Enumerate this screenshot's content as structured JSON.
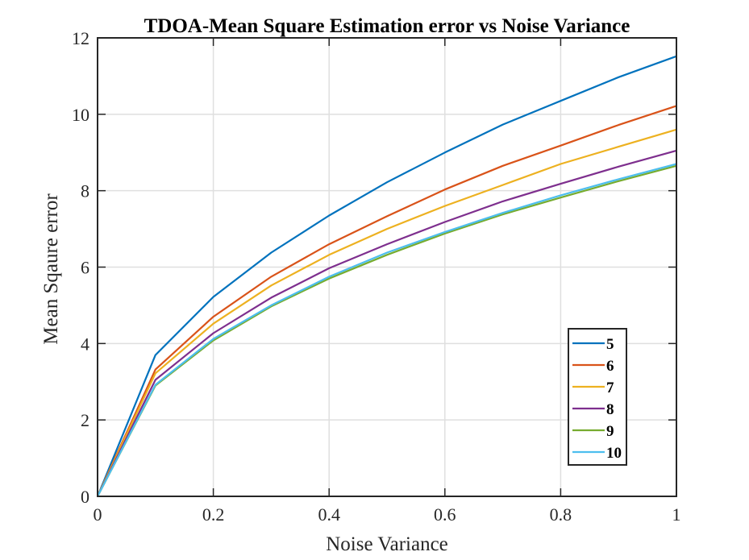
{
  "chart_data": {
    "type": "line",
    "title": "TDOA-Mean Square Estimation error vs Noise Variance",
    "xlabel": "Noise Variance",
    "ylabel": "Mean Sqaure error",
    "xlim": [
      0,
      1
    ],
    "ylim": [
      0,
      12
    ],
    "xticks": [
      0,
      0.2,
      0.4,
      0.6,
      0.8,
      1
    ],
    "xtick_labels": [
      "0",
      "0.2",
      "0.4",
      "0.6",
      "0.8",
      "1"
    ],
    "yticks": [
      0,
      2,
      4,
      6,
      8,
      10,
      12
    ],
    "ytick_labels": [
      "0",
      "2",
      "4",
      "6",
      "8",
      "10",
      "12"
    ],
    "grid": true,
    "legend_position": "bottom-right",
    "x": [
      0,
      0.1,
      0.2,
      0.3,
      0.4,
      0.5,
      0.6,
      0.7,
      0.8,
      0.9,
      1.0
    ],
    "series": [
      {
        "name": "5",
        "color": "#0072BD",
        "values": [
          0,
          3.7,
          5.22,
          6.38,
          7.35,
          8.22,
          9.0,
          9.73,
          10.35,
          10.97,
          11.52
        ]
      },
      {
        "name": "6",
        "color": "#D95319",
        "values": [
          0,
          3.32,
          4.7,
          5.75,
          6.6,
          7.33,
          8.03,
          8.65,
          9.18,
          9.72,
          10.22
        ]
      },
      {
        "name": "7",
        "color": "#EDB120",
        "values": [
          0,
          3.22,
          4.52,
          5.52,
          6.32,
          7.0,
          7.6,
          8.15,
          8.7,
          9.15,
          9.6
        ]
      },
      {
        "name": "8",
        "color": "#7E2F8E",
        "values": [
          0,
          3.05,
          4.27,
          5.2,
          5.97,
          6.6,
          7.18,
          7.72,
          8.18,
          8.63,
          9.05
        ]
      },
      {
        "name": "9",
        "color": "#77AC30",
        "values": [
          0,
          2.9,
          4.08,
          4.97,
          5.7,
          6.32,
          6.88,
          7.38,
          7.82,
          8.25,
          8.65
        ]
      },
      {
        "name": "10",
        "color": "#4DBEEE",
        "values": [
          0,
          2.92,
          4.12,
          5.0,
          5.75,
          6.38,
          6.92,
          7.42,
          7.88,
          8.3,
          8.7
        ]
      }
    ]
  }
}
